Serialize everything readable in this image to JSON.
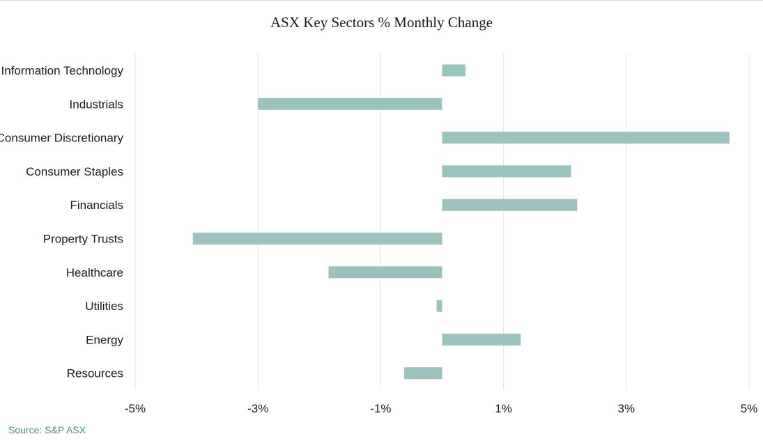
{
  "source": "Source: S&P ASX",
  "colors": {
    "bar": "#99c3bc",
    "grid": "#e3e3e3",
    "source": "#4e8f86"
  },
  "chart_data": {
    "type": "bar",
    "orientation": "horizontal",
    "title": "ASX Key Sectors % Monthly Change",
    "xlabel": "",
    "ylabel": "",
    "xlim": [
      -5,
      5
    ],
    "grid": true,
    "categories": [
      "Information Technology",
      "Industrials",
      "Consumer Discretionary",
      "Consumer Staples",
      "Financials",
      "Property Trusts",
      "Healthcare",
      "Utilities",
      "Energy",
      "Resources"
    ],
    "values": [
      0.38,
      -3.0,
      4.68,
      2.1,
      2.2,
      -4.06,
      -1.85,
      -0.09,
      1.28,
      -0.62
    ],
    "tick_values": [
      -5,
      -3,
      -1,
      1,
      3,
      5
    ],
    "tick_labels": [
      "-5%",
      "-3%",
      "-1%",
      "1%",
      "3%",
      "5%"
    ]
  }
}
